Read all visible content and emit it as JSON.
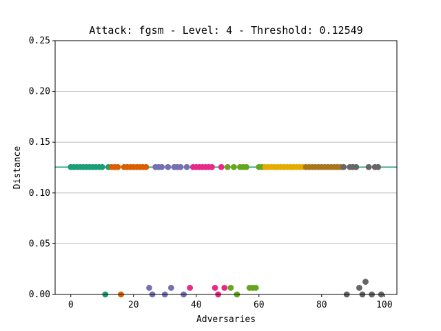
{
  "chart_data": {
    "type": "scatter",
    "title": "Attack: fgsm - Level: 4 - Threshold: 0.12549",
    "xlabel": "Adversaries",
    "ylabel": "Distance",
    "xlim": [
      -5,
      104
    ],
    "ylim": [
      0,
      0.25
    ],
    "xticks": [
      0,
      20,
      40,
      60,
      80,
      100
    ],
    "xtick_labels": [
      "0",
      "20",
      "40",
      "60",
      "80",
      "100"
    ],
    "yticks": [
      0,
      0.05,
      0.1,
      0.15,
      0.2,
      0.25
    ],
    "ytick_labels": [
      "0.00",
      "0.05",
      "0.10",
      "0.15",
      "0.20",
      "0.25"
    ],
    "grid": "horizontal",
    "threshold": {
      "value": 0.12549,
      "color": "#1b9e77"
    },
    "colors": {
      "teal": "#1b9e77",
      "orange": "#d95f02",
      "purple": "#7570b3",
      "magenta": "#e7298a",
      "green": "#66a61e",
      "gold": "#e6ab02",
      "brown": "#a6761d",
      "gray": "#666666"
    },
    "points": [
      {
        "x": 0,
        "y": 0.12549,
        "c": "teal"
      },
      {
        "x": 1,
        "y": 0.12549,
        "c": "teal"
      },
      {
        "x": 2,
        "y": 0.12549,
        "c": "teal"
      },
      {
        "x": 3,
        "y": 0.12549,
        "c": "teal"
      },
      {
        "x": 4,
        "y": 0.12549,
        "c": "teal"
      },
      {
        "x": 5,
        "y": 0.12549,
        "c": "teal"
      },
      {
        "x": 6,
        "y": 0.12549,
        "c": "teal"
      },
      {
        "x": 7,
        "y": 0.12549,
        "c": "teal"
      },
      {
        "x": 8,
        "y": 0.12549,
        "c": "teal"
      },
      {
        "x": 9,
        "y": 0.12549,
        "c": "teal"
      },
      {
        "x": 10,
        "y": 0.12549,
        "c": "teal"
      },
      {
        "x": 11,
        "y": 0,
        "c": "teal"
      },
      {
        "x": 12,
        "y": 0.12549,
        "c": "teal"
      },
      {
        "x": 13,
        "y": 0.12549,
        "c": "orange"
      },
      {
        "x": 14,
        "y": 0.12549,
        "c": "orange"
      },
      {
        "x": 15,
        "y": 0.12549,
        "c": "orange"
      },
      {
        "x": 16,
        "y": 0,
        "c": "orange"
      },
      {
        "x": 17,
        "y": 0.12549,
        "c": "orange"
      },
      {
        "x": 18,
        "y": 0.12549,
        "c": "orange"
      },
      {
        "x": 19,
        "y": 0.12549,
        "c": "orange"
      },
      {
        "x": 20,
        "y": 0.12549,
        "c": "orange"
      },
      {
        "x": 21,
        "y": 0.12549,
        "c": "orange"
      },
      {
        "x": 22,
        "y": 0.12549,
        "c": "orange"
      },
      {
        "x": 23,
        "y": 0.12549,
        "c": "orange"
      },
      {
        "x": 24,
        "y": 0.12549,
        "c": "orange"
      },
      {
        "x": 25,
        "y": 0.0065,
        "c": "purple"
      },
      {
        "x": 26,
        "y": 0,
        "c": "purple"
      },
      {
        "x": 27,
        "y": 0.12549,
        "c": "purple"
      },
      {
        "x": 28,
        "y": 0.12549,
        "c": "purple"
      },
      {
        "x": 29,
        "y": 0.12549,
        "c": "purple"
      },
      {
        "x": 30,
        "y": 0,
        "c": "purple"
      },
      {
        "x": 31,
        "y": 0.12549,
        "c": "purple"
      },
      {
        "x": 32,
        "y": 0.0065,
        "c": "purple"
      },
      {
        "x": 33,
        "y": 0.12549,
        "c": "purple"
      },
      {
        "x": 34,
        "y": 0.12549,
        "c": "purple"
      },
      {
        "x": 35,
        "y": 0.12549,
        "c": "purple"
      },
      {
        "x": 36,
        "y": 0,
        "c": "purple"
      },
      {
        "x": 37,
        "y": 0.12549,
        "c": "purple"
      },
      {
        "x": 38,
        "y": 0.0065,
        "c": "magenta"
      },
      {
        "x": 39,
        "y": 0.12549,
        "c": "magenta"
      },
      {
        "x": 40,
        "y": 0.12549,
        "c": "magenta"
      },
      {
        "x": 41,
        "y": 0.12549,
        "c": "magenta"
      },
      {
        "x": 42,
        "y": 0.12549,
        "c": "magenta"
      },
      {
        "x": 43,
        "y": 0.12549,
        "c": "magenta"
      },
      {
        "x": 44,
        "y": 0.12549,
        "c": "magenta"
      },
      {
        "x": 45,
        "y": 0.12549,
        "c": "magenta"
      },
      {
        "x": 46,
        "y": 0.0065,
        "c": "magenta"
      },
      {
        "x": 47,
        "y": 0,
        "c": "magenta"
      },
      {
        "x": 48,
        "y": 0.12549,
        "c": "magenta"
      },
      {
        "x": 49,
        "y": 0.0065,
        "c": "magenta"
      },
      {
        "x": 50,
        "y": 0.12549,
        "c": "green"
      },
      {
        "x": 51,
        "y": 0.0065,
        "c": "green"
      },
      {
        "x": 52,
        "y": 0.12549,
        "c": "green"
      },
      {
        "x": 53,
        "y": 0,
        "c": "green"
      },
      {
        "x": 54,
        "y": 0.12549,
        "c": "green"
      },
      {
        "x": 55,
        "y": 0.12549,
        "c": "green"
      },
      {
        "x": 56,
        "y": 0.12549,
        "c": "green"
      },
      {
        "x": 57,
        "y": 0.0065,
        "c": "green"
      },
      {
        "x": 58,
        "y": 0.0065,
        "c": "green"
      },
      {
        "x": 59,
        "y": 0.0065,
        "c": "green"
      },
      {
        "x": 60,
        "y": 0.12549,
        "c": "green"
      },
      {
        "x": 61,
        "y": 0.12549,
        "c": "green"
      },
      {
        "x": 62,
        "y": 0.12549,
        "c": "gold"
      },
      {
        "x": 63,
        "y": 0.12549,
        "c": "gold"
      },
      {
        "x": 64,
        "y": 0.12549,
        "c": "gold"
      },
      {
        "x": 65,
        "y": 0.12549,
        "c": "gold"
      },
      {
        "x": 66,
        "y": 0.12549,
        "c": "gold"
      },
      {
        "x": 67,
        "y": 0.12549,
        "c": "gold"
      },
      {
        "x": 68,
        "y": 0.12549,
        "c": "gold"
      },
      {
        "x": 69,
        "y": 0.12549,
        "c": "gold"
      },
      {
        "x": 70,
        "y": 0.12549,
        "c": "gold"
      },
      {
        "x": 71,
        "y": 0.12549,
        "c": "gold"
      },
      {
        "x": 72,
        "y": 0.12549,
        "c": "gold"
      },
      {
        "x": 73,
        "y": 0.12549,
        "c": "gold"
      },
      {
        "x": 74,
        "y": 0.12549,
        "c": "gold"
      },
      {
        "x": 75,
        "y": 0.12549,
        "c": "brown"
      },
      {
        "x": 76,
        "y": 0.12549,
        "c": "brown"
      },
      {
        "x": 77,
        "y": 0.12549,
        "c": "brown"
      },
      {
        "x": 78,
        "y": 0.12549,
        "c": "brown"
      },
      {
        "x": 79,
        "y": 0.12549,
        "c": "brown"
      },
      {
        "x": 80,
        "y": 0.12549,
        "c": "brown"
      },
      {
        "x": 81,
        "y": 0.12549,
        "c": "brown"
      },
      {
        "x": 82,
        "y": 0.12549,
        "c": "brown"
      },
      {
        "x": 83,
        "y": 0.12549,
        "c": "brown"
      },
      {
        "x": 84,
        "y": 0.12549,
        "c": "brown"
      },
      {
        "x": 85,
        "y": 0.12549,
        "c": "brown"
      },
      {
        "x": 86,
        "y": 0.12549,
        "c": "brown"
      },
      {
        "x": 87,
        "y": 0.12549,
        "c": "gray"
      },
      {
        "x": 88,
        "y": 0,
        "c": "gray"
      },
      {
        "x": 89,
        "y": 0.12549,
        "c": "gray"
      },
      {
        "x": 90,
        "y": 0.12549,
        "c": "gray"
      },
      {
        "x": 91,
        "y": 0.12549,
        "c": "gray"
      },
      {
        "x": 92,
        "y": 0.0065,
        "c": "gray"
      },
      {
        "x": 93,
        "y": 0,
        "c": "gray"
      },
      {
        "x": 94,
        "y": 0.0125,
        "c": "gray"
      },
      {
        "x": 95,
        "y": 0.12549,
        "c": "gray"
      },
      {
        "x": 96,
        "y": 0,
        "c": "gray"
      },
      {
        "x": 97,
        "y": 0.12549,
        "c": "gray"
      },
      {
        "x": 98,
        "y": 0.12549,
        "c": "gray"
      },
      {
        "x": 99,
        "y": 0,
        "c": "gray"
      }
    ]
  }
}
